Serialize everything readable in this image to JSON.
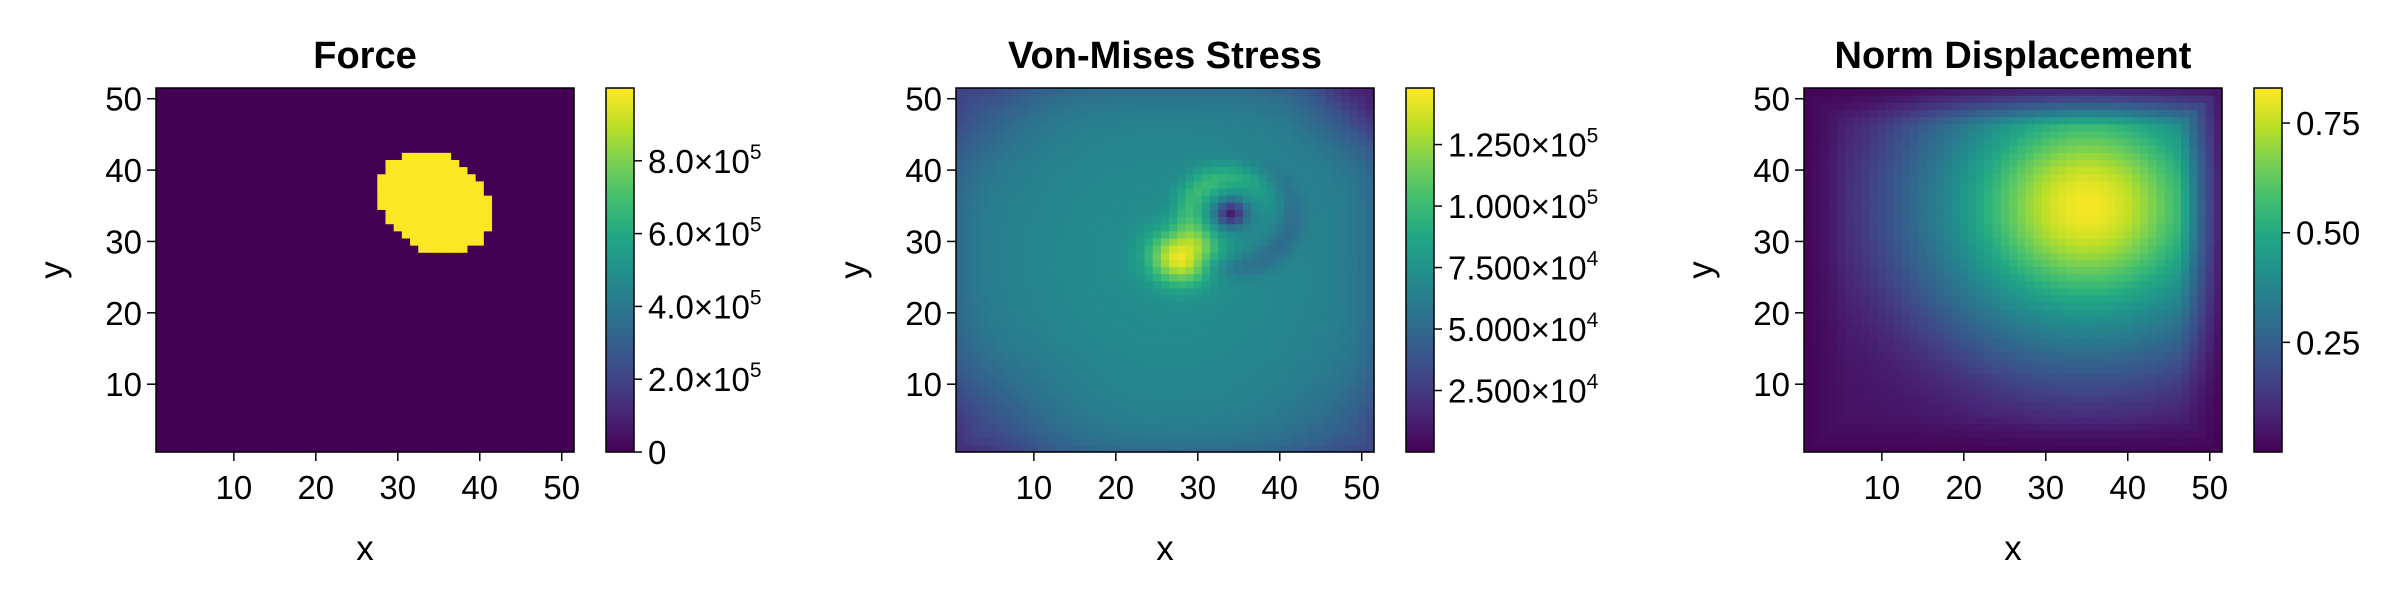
{
  "chart_data": [
    {
      "type": "heatmap",
      "title": "Force",
      "xlabel": "x",
      "ylabel": "y",
      "xlim": [
        0.5,
        51.5
      ],
      "ylim": [
        0.5,
        51.5
      ],
      "xticks": [
        10,
        20,
        30,
        40,
        50
      ],
      "yticks": [
        10,
        20,
        30,
        40,
        50
      ],
      "xtick_labels": [
        "10",
        "20",
        "30",
        "40",
        "50"
      ],
      "ytick_labels": [
        "10",
        "20",
        "30",
        "40",
        "50"
      ],
      "colormap": "viridis",
      "colorbar": {
        "range": [
          0,
          1000000
        ],
        "ticks": [
          0,
          200000,
          400000,
          600000,
          800000
        ],
        "tick_labels": [
          {
            "mantissa": "0",
            "exponent": ""
          },
          {
            "mantissa": "2.0×10",
            "exponent": "5"
          },
          {
            "mantissa": "4.0×10",
            "exponent": "5"
          },
          {
            "mantissa": "6.0×10",
            "exponent": "5"
          },
          {
            "mantissa": "8.0×10",
            "exponent": "5"
          }
        ]
      },
      "field": {
        "kind": "ellipse",
        "center": [
          34.5,
          35.5
        ],
        "semi_axes": [
          6.3,
          7.9
        ],
        "rotation_deg": 42,
        "inside_value": 1000000,
        "outside_value": 0
      }
    },
    {
      "type": "heatmap",
      "title": "Von-Mises Stress",
      "xlabel": "x",
      "ylabel": "y",
      "xlim": [
        0.5,
        51.5
      ],
      "ylim": [
        0.5,
        51.5
      ],
      "xticks": [
        10,
        20,
        30,
        40,
        50
      ],
      "yticks": [
        10,
        20,
        30,
        40,
        50
      ],
      "xtick_labels": [
        "10",
        "20",
        "30",
        "40",
        "50"
      ],
      "ytick_labels": [
        "10",
        "20",
        "30",
        "40",
        "50"
      ],
      "colormap": "viridis",
      "colorbar": {
        "range": [
          0,
          148000
        ],
        "ticks": [
          25000,
          50000,
          75000,
          100000,
          125000
        ],
        "tick_labels": [
          {
            "mantissa": "2.500×10",
            "exponent": "4"
          },
          {
            "mantissa": "5.000×10",
            "exponent": "4"
          },
          {
            "mantissa": "7.500×10",
            "exponent": "4"
          },
          {
            "mantissa": "1.000×10",
            "exponent": "5"
          },
          {
            "mantissa": "1.250×10",
            "exponent": "5"
          }
        ]
      },
      "field": {
        "kind": "stress",
        "hot_spot": [
          28,
          28
        ],
        "cold_spot": [
          34,
          34
        ],
        "peak_value": 145000
      }
    },
    {
      "type": "heatmap",
      "title": "Norm Displacement",
      "xlabel": "x",
      "ylabel": "y",
      "xlim": [
        0.5,
        51.5
      ],
      "ylim": [
        0.5,
        51.5
      ],
      "xticks": [
        10,
        20,
        30,
        40,
        50
      ],
      "yticks": [
        10,
        20,
        30,
        40,
        50
      ],
      "xtick_labels": [
        "10",
        "20",
        "30",
        "40",
        "50"
      ],
      "ytick_labels": [
        "10",
        "20",
        "30",
        "40",
        "50"
      ],
      "colormap": "viridis",
      "colorbar": {
        "range": [
          0,
          0.83
        ],
        "ticks": [
          0.25,
          0.5,
          0.75
        ],
        "tick_labels": [
          {
            "mantissa": "0.25",
            "exponent": ""
          },
          {
            "mantissa": "0.50",
            "exponent": ""
          },
          {
            "mantissa": "0.75",
            "exponent": ""
          }
        ]
      },
      "field": {
        "kind": "gaussian",
        "center": [
          35,
          35
        ],
        "peak_value": 0.82
      }
    }
  ]
}
